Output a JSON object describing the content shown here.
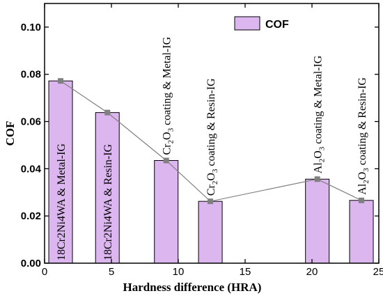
{
  "chart_data": {
    "type": "bar",
    "title": "",
    "xlabel": "Hardness difference (HRA)",
    "ylabel": "COF",
    "xlim": [
      0,
      25
    ],
    "ylim": [
      0,
      0.11
    ],
    "xticks": [
      0,
      5,
      10,
      15,
      20,
      25
    ],
    "yticks": [
      0.0,
      0.02,
      0.04,
      0.06,
      0.08,
      0.1
    ],
    "ytick_labels": [
      "0.00",
      "0.02",
      "0.04",
      "0.06",
      "0.08",
      "0.10"
    ],
    "grid": false,
    "legend": {
      "entries": [
        "COF"
      ],
      "placement": "top-right"
    },
    "bar_color": "#dcb6ef",
    "line_color": "#808080",
    "series": [
      {
        "name": "COF",
        "points": [
          {
            "x": 1.2,
            "y": 0.0772,
            "label": [
              "18Cr2Ni4WA & Metal-IG"
            ]
          },
          {
            "x": 4.7,
            "y": 0.0638,
            "label": [
              "18Cr2Ni4WA & Resin-IG"
            ]
          },
          {
            "x": 9.1,
            "y": 0.0435,
            "label": [
              "Cr",
              "2",
              "O",
              "3",
              " coating & Metal-IG"
            ]
          },
          {
            "x": 12.4,
            "y": 0.0262,
            "label": [
              "Cr",
              "2",
              "O",
              "3",
              " coating & Resin-IG"
            ]
          },
          {
            "x": 20.4,
            "y": 0.0356,
            "label": [
              "Al",
              "2",
              "O",
              "3",
              " coating & Metal-IG"
            ]
          },
          {
            "x": 23.7,
            "y": 0.0266,
            "label": [
              "Al",
              "2",
              "O",
              "3",
              " coating & Resin-IG"
            ]
          }
        ]
      }
    ]
  }
}
